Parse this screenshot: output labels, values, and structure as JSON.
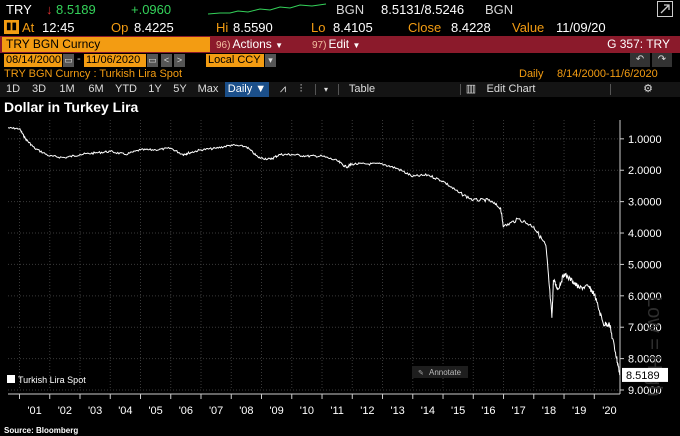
{
  "quote": {
    "ticker": "TRY",
    "direction": "down",
    "last": "8.5189",
    "change": "+.0960",
    "bid_label": "BGN",
    "bid_ask": "8.5131/8.5246",
    "ask_label": "BGN"
  },
  "ohlc": {
    "at_label": "At",
    "time": "12:45",
    "open_label": "Op",
    "open": "8.4225",
    "high_label": "Hi",
    "high": "8.5590",
    "low_label": "Lo",
    "low": "8.4105",
    "close_label": "Close",
    "close": "8.4228",
    "value_label": "Value",
    "value_date": "11/09/20"
  },
  "security_bar": {
    "name": "TRY BGN Curncy",
    "actions_num": "96)",
    "actions_label": "Actions",
    "edit_num": "97)",
    "edit_label": "Edit",
    "function": "G 357: TRY"
  },
  "date_bar": {
    "start": "08/14/2000",
    "dash": "-",
    "end": "11/06/2020",
    "currency": "Local CCY"
  },
  "description": {
    "text": "TRY BGN Curncy : Turkish Lira Spot",
    "frequency": "Daily",
    "range": "8/14/2000-11/6/2020"
  },
  "toolbar": {
    "periods": [
      "1D",
      "3D",
      "1M",
      "6M",
      "YTD",
      "1Y",
      "5Y",
      "Max"
    ],
    "frequency": "Daily ▼",
    "table": "Table",
    "edit_chart": "Edit Chart"
  },
  "chart_title": "Dollar in Turkey Lira",
  "source": "Source: Bloomberg",
  "annotate": "Annotate",
  "watermark": "Low = High",
  "chart_data": {
    "type": "line",
    "series": [
      {
        "name": "Turkish Lira Spot",
        "x": [
          2000.62,
          2001.0,
          2001.2,
          2001.5,
          2002.0,
          2002.5,
          2003.0,
          2003.5,
          2004.0,
          2004.5,
          2005.0,
          2005.5,
          2006.0,
          2006.4,
          2006.6,
          2007.0,
          2007.5,
          2008.0,
          2008.5,
          2008.9,
          2009.3,
          2009.6,
          2010.0,
          2010.5,
          2011.0,
          2011.5,
          2011.8,
          2012.0,
          2012.5,
          2013.0,
          2013.5,
          2014.0,
          2014.5,
          2015.0,
          2015.5,
          2016.0,
          2016.5,
          2016.9,
          2017.0,
          2017.5,
          2018.0,
          2018.4,
          2018.6,
          2018.65,
          2018.8,
          2019.0,
          2019.3,
          2019.5,
          2019.8,
          2020.0,
          2020.3,
          2020.5,
          2020.7,
          2020.85
        ],
        "values": [
          0.65,
          0.68,
          1.0,
          1.3,
          1.55,
          1.6,
          1.5,
          1.45,
          1.4,
          1.5,
          1.35,
          1.35,
          1.3,
          1.5,
          1.45,
          1.35,
          1.3,
          1.2,
          1.25,
          1.6,
          1.65,
          1.5,
          1.5,
          1.55,
          1.55,
          1.7,
          1.9,
          1.8,
          1.8,
          1.8,
          1.95,
          2.2,
          2.15,
          2.35,
          2.7,
          2.95,
          2.95,
          3.2,
          3.8,
          3.55,
          3.8,
          4.4,
          6.7,
          5.5,
          5.8,
          5.3,
          5.55,
          5.75,
          5.7,
          5.95,
          6.9,
          6.9,
          7.8,
          8.52
        ]
      }
    ],
    "last_value_label": "8.5189",
    "legend": "Turkish Lira Spot",
    "legend_position": "bottom-left",
    "y_ticks": [
      "1.0000",
      "2.0000",
      "3.0000",
      "4.0000",
      "5.0000",
      "6.0000",
      "7.0000",
      "8.0000",
      "9.0000"
    ],
    "ylim": [
      0.4,
      9.0
    ],
    "y_inverted": true,
    "x_ticks": [
      "'01",
      "'02",
      "'03",
      "'04",
      "'05",
      "'06",
      "'07",
      "'08",
      "'09",
      "'10",
      "'11",
      "'12",
      "'13",
      "'14",
      "'15",
      "'16",
      "'17",
      "'18",
      "'19",
      "'20"
    ],
    "xlim": [
      2000.62,
      2020.85
    ],
    "grid": true
  },
  "colors": {
    "accent": "#f39c12",
    "bar_red": "#8b1a2b",
    "up_green": "#34d25a",
    "down_red": "#e03030",
    "line": "#ffffff"
  }
}
